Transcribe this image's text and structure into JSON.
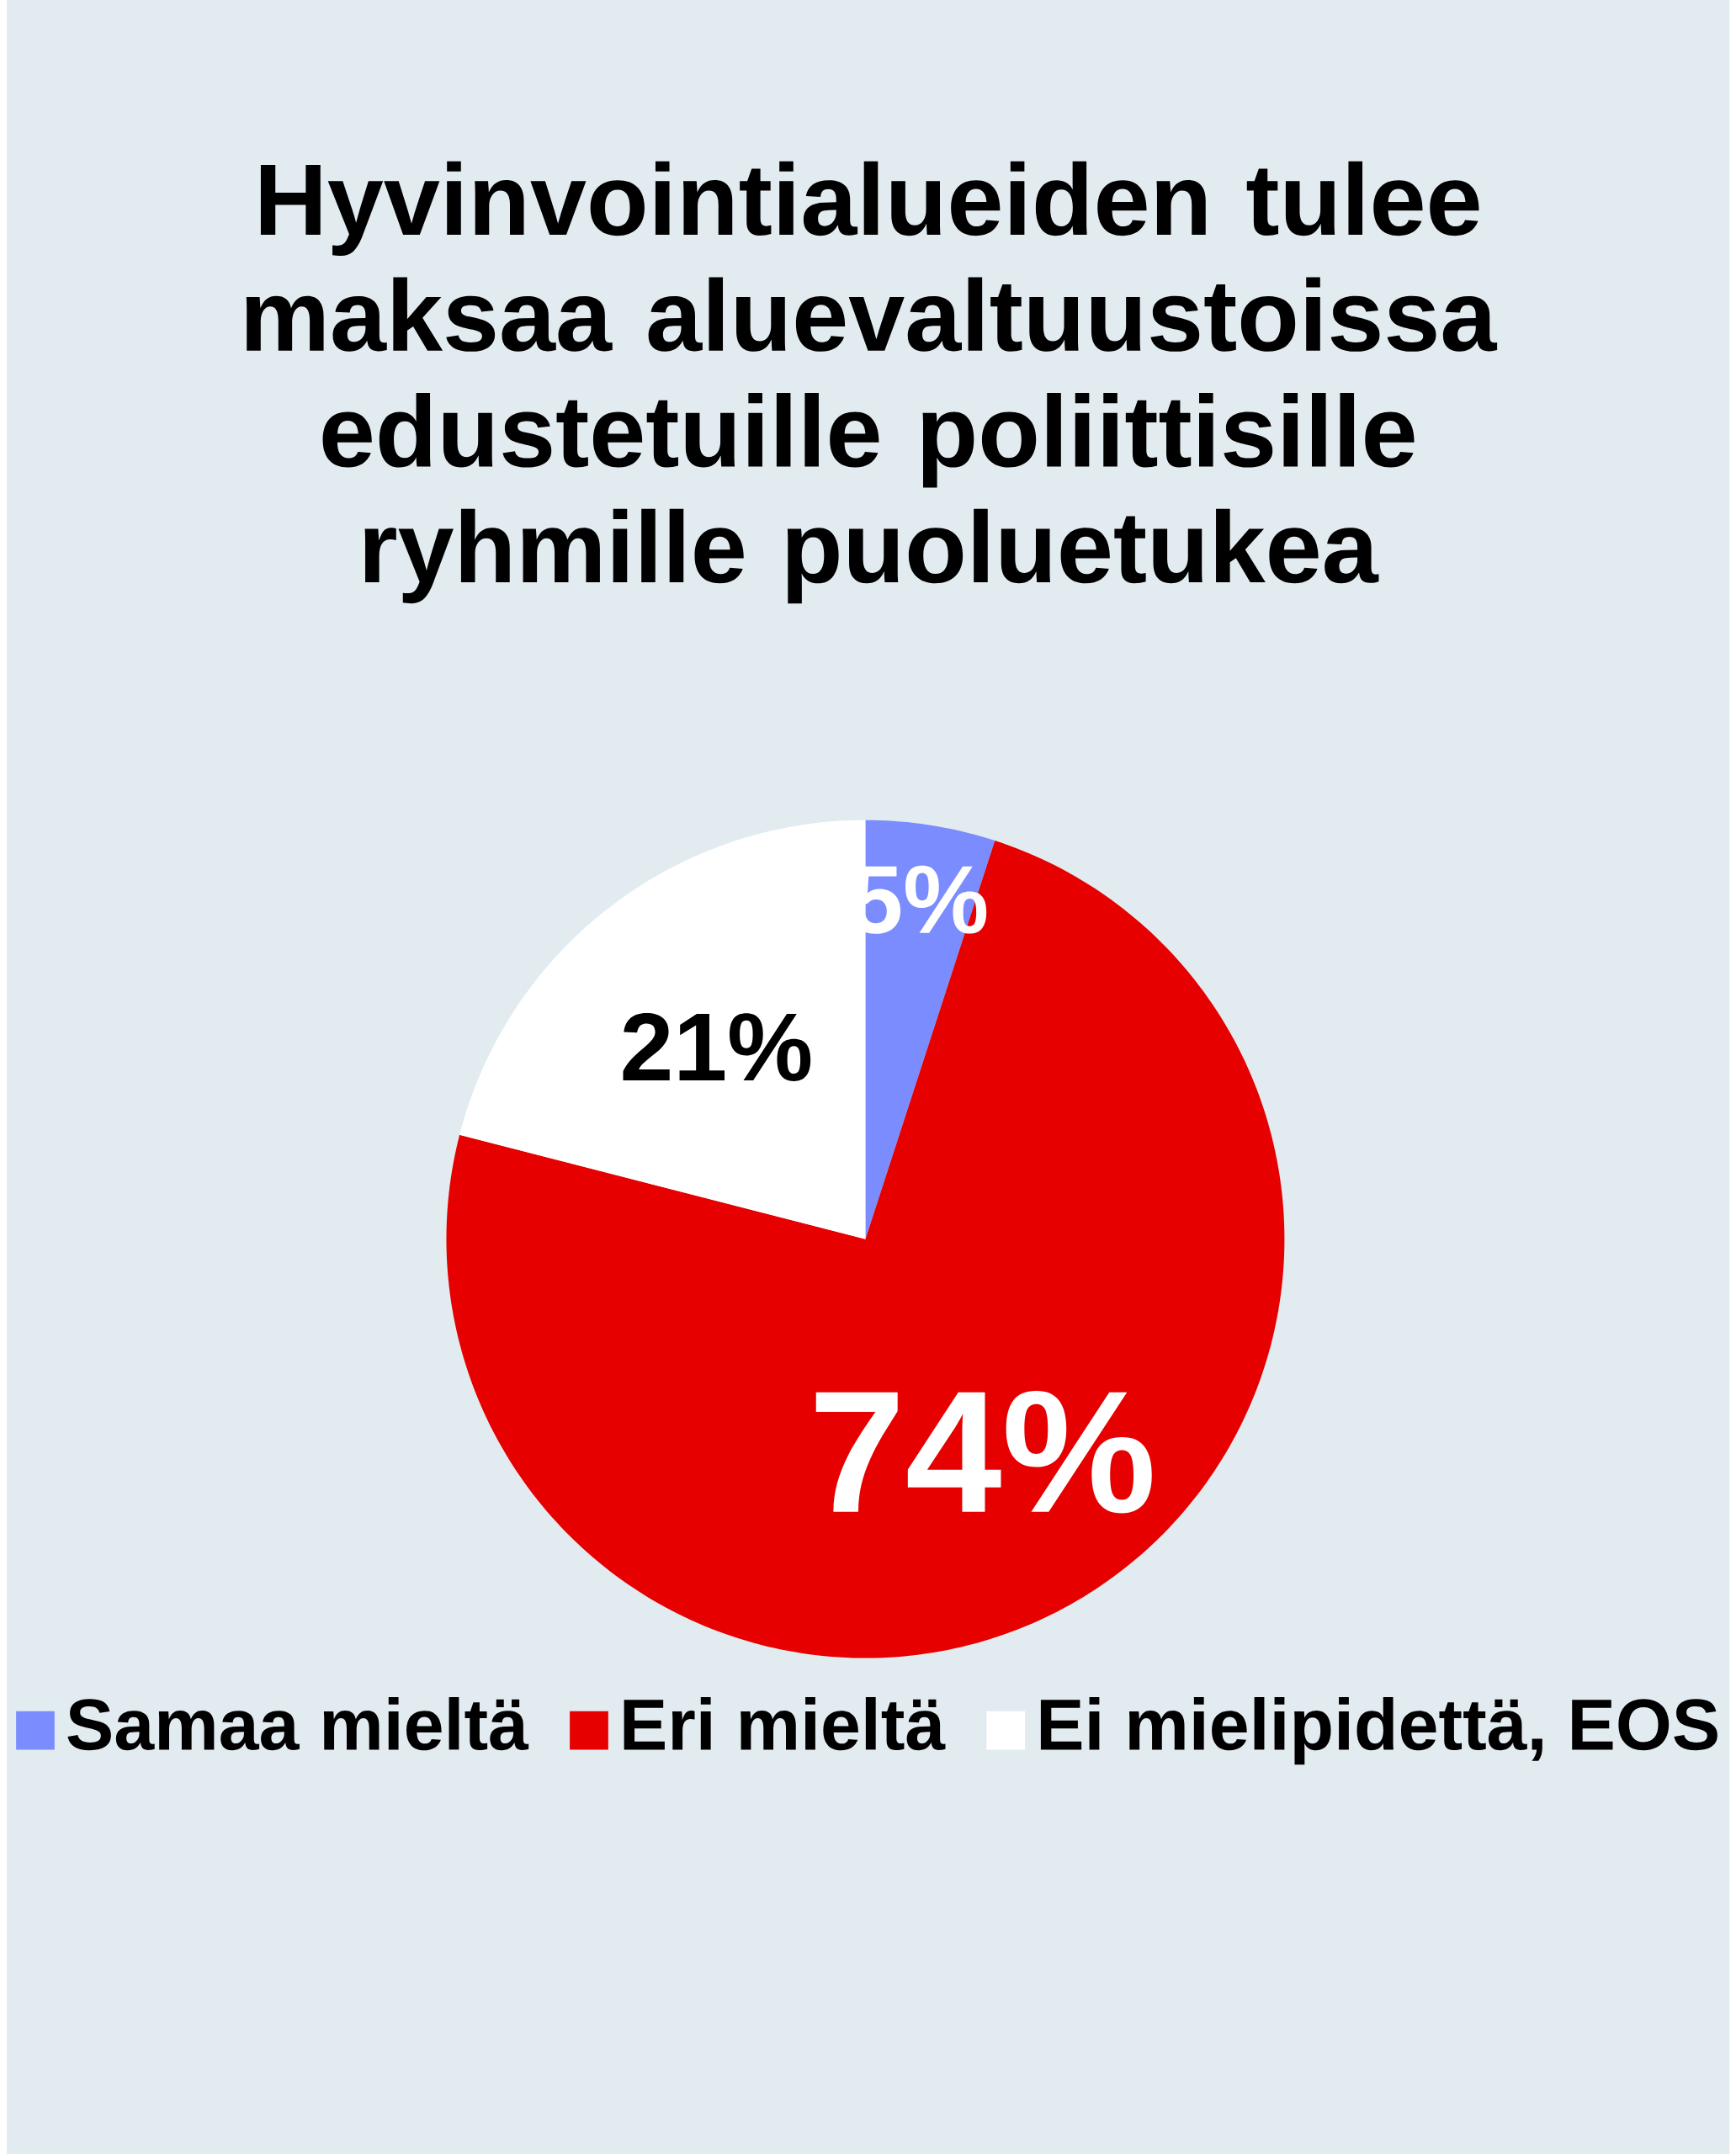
{
  "chart_data": {
    "type": "pie",
    "title": "Hyvinvointialueiden tulee maksaa aluevaltuustoissa edustetuille poliittisille ryhmille puoluetukea",
    "categories": [
      "Samaa mieltä",
      "Eri mieltä",
      "Ei mielipidettä, EOS"
    ],
    "values": [
      5,
      74,
      21
    ],
    "colors": [
      "#7b8cff",
      "#e60000",
      "#ffffff"
    ],
    "value_labels": [
      "5%",
      "74%",
      "21%"
    ],
    "legend": "bottom"
  }
}
